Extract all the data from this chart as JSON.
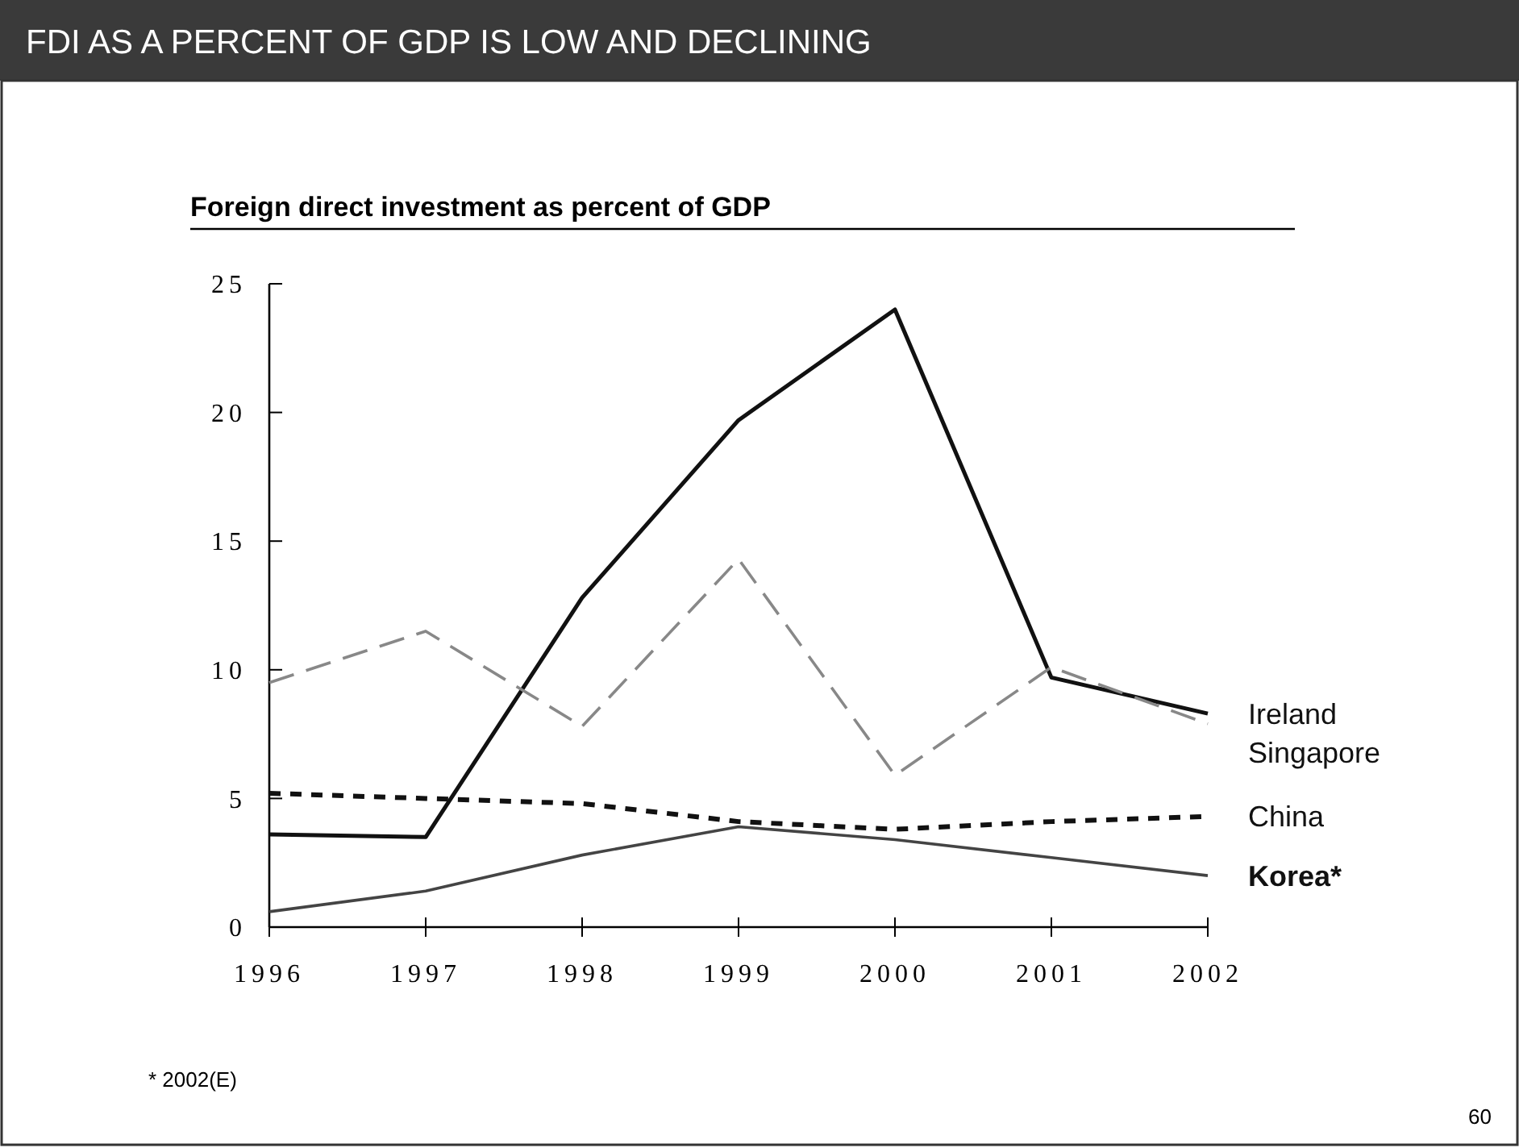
{
  "chart_data": {
    "type": "line",
    "title": "FDI AS A PERCENT OF GDP IS LOW AND DECLINING",
    "subtitle": "Foreign direct investment as percent of GDP",
    "categories": [
      "1996",
      "1997",
      "1998",
      "1999",
      "2000",
      "2001",
      "2002"
    ],
    "series": [
      {
        "name": "Ireland",
        "color": "#111111",
        "line_style": "solid",
        "values": [
          3.6,
          3.5,
          12.8,
          19.7,
          24.0,
          9.7,
          8.3
        ]
      },
      {
        "name": "Singapore",
        "color": "#888888",
        "line_style": "dashed",
        "values": [
          9.5,
          11.5,
          7.8,
          14.3,
          5.9,
          10.1,
          7.9
        ]
      },
      {
        "name": "China",
        "color": "#111111",
        "line_style": "dotted",
        "values": [
          5.2,
          5.0,
          4.8,
          4.1,
          3.8,
          4.1,
          4.3
        ]
      },
      {
        "name": "Korea*",
        "color": "#444444",
        "line_style": "solid",
        "values": [
          0.6,
          1.4,
          2.8,
          3.9,
          3.4,
          2.7,
          2.0
        ]
      }
    ],
    "ylim": [
      0,
      25
    ],
    "yticks": [
      0,
      5,
      10,
      15,
      20,
      25
    ],
    "grid": false,
    "legend": "right",
    "annotations": [
      "* 2002(E)",
      "60"
    ]
  }
}
